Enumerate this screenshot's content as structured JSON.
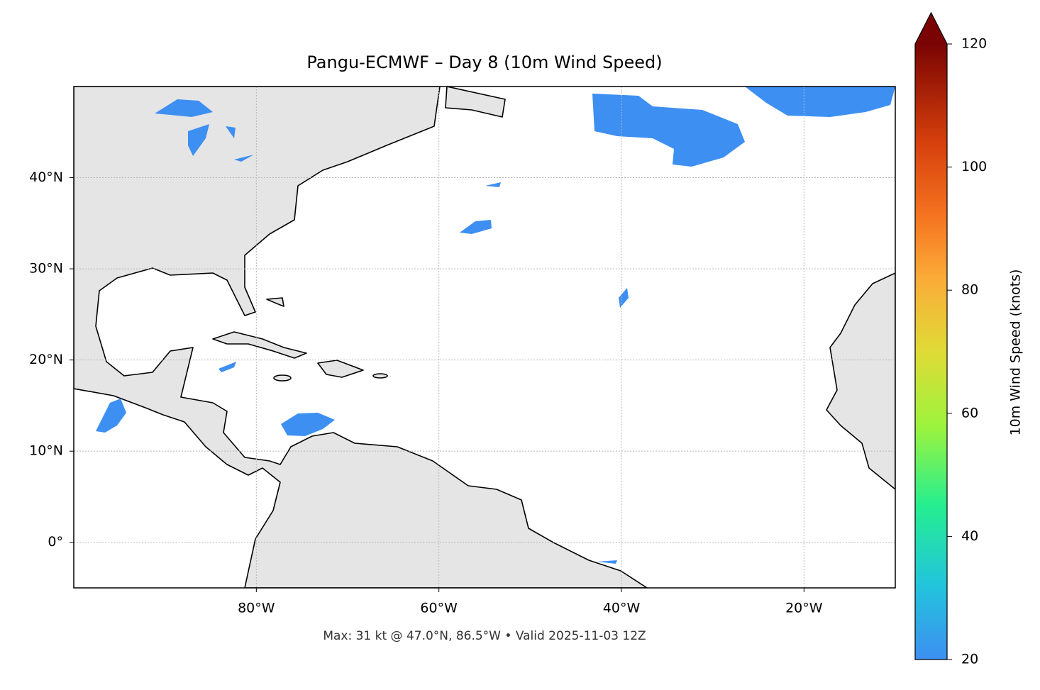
{
  "title": "Pangu-ECMWF – Day 8 (10m Wind Speed)",
  "footer": "Max: 31 kt @ 47.0°N, 86.5°W • Valid 2025-11-03 12Z",
  "map": {
    "xlim": [
      -100,
      -10
    ],
    "ylim": [
      -5,
      50
    ],
    "xticks": [
      {
        "value": -80,
        "label": "80°W"
      },
      {
        "value": -60,
        "label": "60°W"
      },
      {
        "value": -40,
        "label": "40°W"
      },
      {
        "value": -20,
        "label": "20°W"
      }
    ],
    "yticks": [
      {
        "value": 0,
        "label": "0°"
      },
      {
        "value": 10,
        "label": "10°N"
      },
      {
        "value": 20,
        "label": "20°N"
      },
      {
        "value": 30,
        "label": "30°N"
      },
      {
        "value": 40,
        "label": "40°N"
      }
    ],
    "grid": true
  },
  "colorbar": {
    "label": "10m Wind Speed (knots)",
    "lim": [
      20,
      120
    ],
    "ticks": [
      20,
      40,
      60,
      80,
      100,
      120
    ]
  }
}
